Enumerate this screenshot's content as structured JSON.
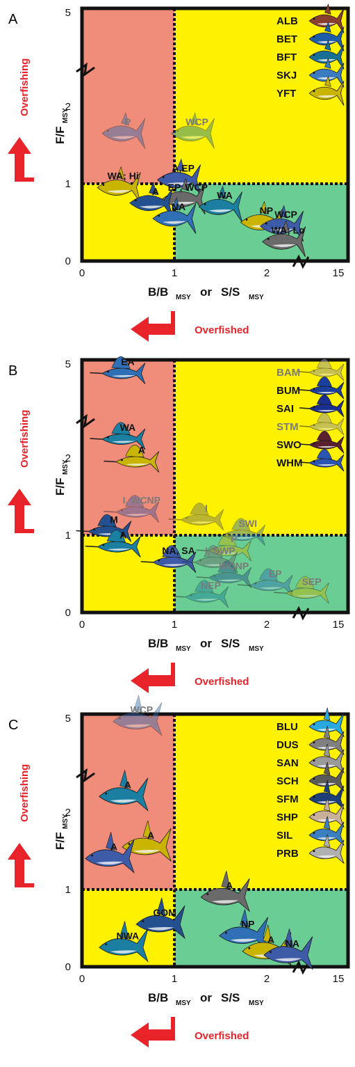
{
  "colors": {
    "overfished_zone": "#f08c7a",
    "ok_zone": "#fff200",
    "sustainable_zone": "#6acd93",
    "arrow": "#e8232a",
    "frame": "#111111",
    "grey_label": "#7a7a7a"
  },
  "common": {
    "y_axis_label": "F/F",
    "y_axis_sub": "MSY",
    "x_axis_label_b": "B/B",
    "x_axis_sub_b": "MSY",
    "x_axis_or": "or",
    "x_axis_label_s": "S/S",
    "x_axis_sub_s": "MSY",
    "overfishing": "Overfishing",
    "overfished": "Overfished",
    "x_ticks": [
      "0",
      "1",
      "2",
      "15"
    ],
    "y_ticks": [
      "0",
      "1",
      "2",
      "5"
    ]
  },
  "chart_data": [
    {
      "panel": "A",
      "type": "scatter",
      "x_ticks": [
        0,
        1,
        2,
        15
      ],
      "y_ticks": [
        0,
        1,
        2,
        5
      ],
      "axis_break": "x between 2 and 15; y between 2 and 5",
      "legend": [
        {
          "code": "ALB",
          "color": "#8a3e2e"
        },
        {
          "code": "BET",
          "color": "#1c5ea8"
        },
        {
          "code": "BFT",
          "color": "#1a6f96"
        },
        {
          "code": "SKJ",
          "color": "#3b7bbf"
        },
        {
          "code": "YFT",
          "color": "#c9b400"
        }
      ],
      "points": [
        {
          "label": "P",
          "x": 0.45,
          "y": 1.65,
          "faded": true
        },
        {
          "label": "WCP",
          "x": 1.2,
          "y": 1.65,
          "faded": true
        },
        {
          "label": "WA; Hi",
          "x": 0.4,
          "y": 0.95,
          "faded": false
        },
        {
          "label": "A,EP",
          "x": 1.05,
          "y": 1.05,
          "faded": false
        },
        {
          "label": "EP, WCP",
          "x": 1.1,
          "y": 0.8,
          "faded": false
        },
        {
          "label": "A",
          "x": 0.75,
          "y": 0.75,
          "faded": false
        },
        {
          "label": "NA",
          "x": 1.0,
          "y": 0.55,
          "faded": false
        },
        {
          "label": "WA",
          "x": 1.5,
          "y": 0.7,
          "faded": false
        },
        {
          "label": "NP",
          "x": 1.95,
          "y": 0.5,
          "faded": false
        },
        {
          "label": "WCP",
          "x": 2.35,
          "y": 0.45,
          "faded": false
        },
        {
          "label": "WA; Lo",
          "x": 2.4,
          "y": 0.25,
          "faded": false
        }
      ]
    },
    {
      "panel": "B",
      "type": "scatter",
      "x_ticks": [
        0,
        1,
        2,
        15
      ],
      "y_ticks": [
        0,
        1,
        2,
        5
      ],
      "axis_break": "x between 2 and 15; y between 2 and 5",
      "legend": [
        {
          "code": "BAM",
          "color": "#9a9a9a",
          "faded": true
        },
        {
          "code": "BUM",
          "color": "#1a3f9c",
          "faded": false
        },
        {
          "code": "SAI",
          "color": "#1a2f90",
          "faded": false
        },
        {
          "code": "STM",
          "color": "#9a9a9a",
          "faded": true
        },
        {
          "code": "SWO",
          "color": "#5a2030",
          "faded": false
        },
        {
          "code": "WHM",
          "color": "#2a55b0",
          "faded": false
        }
      ],
      "points": [
        {
          "label": "EA",
          "x": 0.45,
          "y": 4.7,
          "faded": false
        },
        {
          "label": "WA",
          "x": 0.45,
          "y": 2.6,
          "faded": false
        },
        {
          "label": "A",
          "x": 0.6,
          "y": 1.95,
          "faded": false
        },
        {
          "label": "I, WCNP",
          "x": 0.6,
          "y": 1.3,
          "faded": true
        },
        {
          "label": "I",
          "x": 1.3,
          "y": 1.2,
          "faded": true
        },
        {
          "label": "M",
          "x": 0.3,
          "y": 1.05,
          "faded": false
        },
        {
          "label": "SWI",
          "x": 1.75,
          "y": 1.0,
          "faded": true
        },
        {
          "label": "A",
          "x": 0.4,
          "y": 0.85,
          "faded": false
        },
        {
          "label": "P",
          "x": 1.6,
          "y": 0.8,
          "faded": true
        },
        {
          "label": "NA, SA",
          "x": 1.0,
          "y": 0.65,
          "faded": false
        },
        {
          "label": "I, SWP",
          "x": 1.45,
          "y": 0.65,
          "faded": true
        },
        {
          "label": "WCNP",
          "x": 1.6,
          "y": 0.45,
          "faded": true
        },
        {
          "label": "EP",
          "x": 2.1,
          "y": 0.35,
          "faded": true
        },
        {
          "label": "NEP",
          "x": 1.35,
          "y": 0.2,
          "faded": true
        },
        {
          "label": "SEP",
          "x": 2.95,
          "y": 0.25,
          "faded": true
        }
      ]
    },
    {
      "panel": "C",
      "type": "scatter",
      "x_ticks": [
        0,
        1,
        2,
        15
      ],
      "y_ticks": [
        0,
        1,
        2,
        5
      ],
      "axis_break": "x between 2 and 15; y between 2 and 5",
      "legend": [
        {
          "code": "BLU",
          "color": "#2aa9e0"
        },
        {
          "code": "DUS",
          "color": "#808080"
        },
        {
          "code": "SAN",
          "color": "#9a9a9a"
        },
        {
          "code": "SCH",
          "color": "#5a5a5a"
        },
        {
          "code": "SFM",
          "color": "#1c3f7a"
        },
        {
          "code": "SHP",
          "color": "#c9b09a"
        },
        {
          "code": "SIL",
          "color": "#3a7fc0"
        },
        {
          "code": "PRB",
          "color": "#b0b0b0"
        }
      ],
      "points": [
        {
          "label": "WCP",
          "x": 0.6,
          "y": 4.9,
          "faded": true
        },
        {
          "label": "A",
          "x": 0.45,
          "y": 2.5,
          "faded": false
        },
        {
          "label": "A",
          "x": 0.7,
          "y": 1.55,
          "faded": false
        },
        {
          "label": "A",
          "x": 0.3,
          "y": 1.4,
          "faded": false
        },
        {
          "label": "A",
          "x": 1.55,
          "y": 0.9,
          "faded": false
        },
        {
          "label": "GOM",
          "x": 0.85,
          "y": 0.55,
          "faded": false
        },
        {
          "label": "NP",
          "x": 1.75,
          "y": 0.4,
          "faded": false
        },
        {
          "label": "NWA",
          "x": 0.45,
          "y": 0.25,
          "faded": false
        },
        {
          "label": "A",
          "x": 2.0,
          "y": 0.2,
          "faded": false
        },
        {
          "label": "NA",
          "x": 2.5,
          "y": 0.15,
          "faded": false
        }
      ]
    }
  ]
}
